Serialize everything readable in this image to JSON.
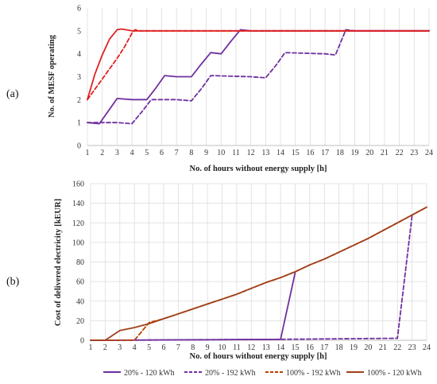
{
  "chart_data": [
    {
      "type": "line",
      "panel_label": "(a)",
      "xlabel": "No. of hours without energy supply [h]",
      "ylabel": "No. of MESF operating",
      "xlim": [
        1,
        24
      ],
      "ylim": [
        0,
        6
      ],
      "x_ticks": [
        1,
        2,
        3,
        4,
        5,
        6,
        7,
        8,
        9,
        10,
        11,
        12,
        13,
        14,
        15,
        16,
        17,
        18,
        19,
        20,
        21,
        22,
        23,
        24
      ],
      "y_ticks": [
        0,
        1,
        2,
        3,
        4,
        5,
        6
      ],
      "grid": "vertical",
      "series": [
        {
          "name": "20% - 120 kWh",
          "color": "#7030a0",
          "dash": false,
          "x": [
            1,
            1.8,
            2.4,
            3,
            4,
            5,
            5.6,
            6.2,
            7,
            8,
            8.6,
            9.3,
            10,
            10.6,
            11.3,
            12,
            24
          ],
          "y": [
            1,
            0.95,
            1.5,
            2.05,
            2,
            2,
            2.5,
            3.05,
            3,
            3,
            3.5,
            4.05,
            4,
            4.5,
            5.05,
            5,
            5
          ]
        },
        {
          "name": "20% - 192 kWh",
          "color": "#7030a0",
          "dash": true,
          "x": [
            1,
            3,
            4,
            4.7,
            5.3,
            7,
            8,
            8.7,
            9.3,
            12,
            13,
            13.7,
            14.3,
            17,
            17.7,
            18.4,
            19,
            24
          ],
          "y": [
            1,
            1,
            0.95,
            1.5,
            2,
            2,
            1.95,
            2.5,
            3.05,
            3,
            2.95,
            3.5,
            4.05,
            4,
            3.95,
            5.05,
            5,
            5
          ]
        },
        {
          "name": "100% - 192 kWh",
          "color": "#e02020",
          "dash": true,
          "x": [
            1,
            2,
            3,
            3.5,
            4,
            4.2,
            4.5,
            24
          ],
          "y": [
            2,
            2.9,
            3.8,
            4.3,
            4.9,
            5.05,
            5,
            5
          ]
        },
        {
          "name": "100% - 120 kWh",
          "color": "#e02020",
          "dash": false,
          "x": [
            1,
            1.5,
            2,
            2.5,
            3,
            3.3,
            4,
            24
          ],
          "y": [
            2,
            3.1,
            3.95,
            4.65,
            5.05,
            5.08,
            5,
            5
          ]
        }
      ]
    },
    {
      "type": "line",
      "panel_label": "(b)",
      "xlabel": "No. of hours without energy supply [h]",
      "ylabel": "Cost of delivered electricity [kEUR]",
      "xlim": [
        1,
        24
      ],
      "ylim": [
        0,
        160
      ],
      "x_ticks": [
        1,
        2,
        3,
        4,
        5,
        6,
        7,
        8,
        9,
        10,
        11,
        12,
        13,
        14,
        15,
        16,
        17,
        18,
        19,
        20,
        21,
        22,
        23,
        24
      ],
      "y_ticks": [
        0,
        20,
        40,
        60,
        80,
        100,
        120,
        140,
        160
      ],
      "grid": "both",
      "series": [
        {
          "name": "20% - 120 kWh",
          "color": "#7030a0",
          "dash": false,
          "x": [
            1,
            2,
            14,
            15
          ],
          "y": [
            0,
            0,
            1,
            69
          ]
        },
        {
          "name": "20% - 192 kWh",
          "color": "#7030a0",
          "dash": true,
          "x": [
            1,
            2,
            14,
            22,
            23
          ],
          "y": [
            0,
            0,
            1,
            2,
            127
          ]
        },
        {
          "name": "100% - 192 kWh",
          "color": "#c04000",
          "dash": true,
          "x": [
            1,
            4,
            5,
            6,
            7,
            8,
            9,
            10,
            11,
            12,
            13,
            14,
            15,
            16,
            17,
            18,
            19,
            20,
            21,
            22,
            23,
            24
          ],
          "y": [
            0,
            0,
            18,
            22,
            27,
            32,
            37,
            42,
            47,
            53,
            59,
            64,
            70,
            77,
            83,
            90,
            97,
            104,
            112,
            120,
            128,
            136
          ]
        },
        {
          "name": "100% - 120 kWh",
          "color": "#a0401a",
          "dash": false,
          "x": [
            1,
            2,
            3,
            4,
            5,
            6,
            7,
            8,
            9,
            10,
            11,
            12,
            13,
            14,
            15,
            16,
            17,
            18,
            19,
            20,
            21,
            22,
            23,
            24
          ],
          "y": [
            0,
            0,
            10,
            13,
            17,
            22,
            27,
            32,
            37,
            42,
            47,
            53,
            59,
            64,
            70,
            77,
            83,
            90,
            97,
            104,
            112,
            120,
            128,
            136
          ]
        }
      ]
    }
  ],
  "legend": {
    "placement": "bottom",
    "items": [
      {
        "label": "20% - 120 kWh",
        "color": "#7030a0",
        "dash": false
      },
      {
        "label": "20% - 192 kWh",
        "color": "#7030a0",
        "dash": true
      },
      {
        "label": "100% - 192 kWh",
        "color": "#c04000",
        "dash": true
      },
      {
        "label": "100% - 120 kWh",
        "color": "#a0401a",
        "dash": false
      }
    ]
  }
}
